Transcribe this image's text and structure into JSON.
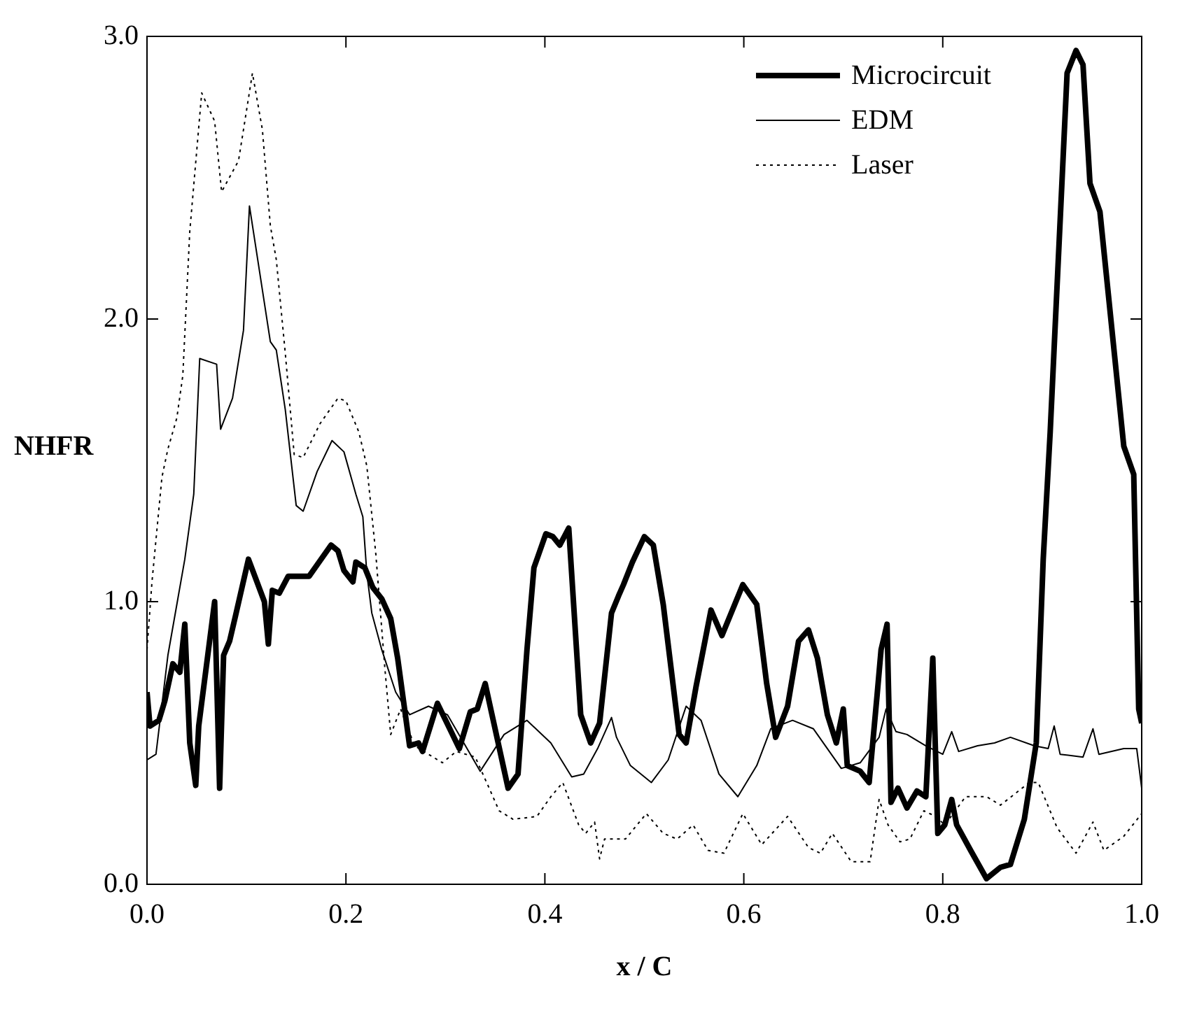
{
  "chart_data": {
    "type": "line",
    "xlabel": "x / C",
    "ylabel": "NHFR",
    "xlim": [
      0,
      1
    ],
    "ylim": [
      0,
      3
    ],
    "xticks": [
      {
        "value": 0,
        "label": "0.0"
      },
      {
        "value": 0.2,
        "label": "0.2"
      },
      {
        "value": 0.4,
        "label": "0.4"
      },
      {
        "value": 0.6,
        "label": "0.6"
      },
      {
        "value": 0.8,
        "label": "0.8"
      },
      {
        "value": 1,
        "label": "1.0"
      }
    ],
    "yticks": [
      {
        "value": 0,
        "label": "0.0"
      },
      {
        "value": 1,
        "label": "1.0"
      },
      {
        "value": 2,
        "label": "2.0"
      },
      {
        "value": 3,
        "label": "3.0"
      }
    ],
    "grid": false,
    "legend": "top right",
    "marker": "none",
    "series": [
      {
        "name": "Microcircuit",
        "color": "#000000",
        "line_style": "solid",
        "x": [
          0,
          0.003,
          0.012,
          0.018,
          0.026,
          0.033,
          0.038,
          0.043,
          0.049,
          0.052,
          0.068,
          0.073,
          0.077,
          0.083,
          0.089,
          0.102,
          0.118,
          0.122,
          0.126,
          0.133,
          0.142,
          0.163,
          0.171,
          0.185,
          0.192,
          0.198,
          0.207,
          0.21,
          0.219,
          0.227,
          0.236,
          0.245,
          0.252,
          0.264,
          0.273,
          0.277,
          0.292,
          0.314,
          0.325,
          0.332,
          0.34,
          0.363,
          0.373,
          0.382,
          0.389,
          0.401,
          0.408,
          0.415,
          0.424,
          0.436,
          0.446,
          0.455,
          0.467,
          0.474,
          0.479,
          0.488,
          0.5,
          0.509,
          0.519,
          0.535,
          0.542,
          0.552,
          0.567,
          0.578,
          0.599,
          0.613,
          0.623,
          0.632,
          0.644,
          0.655,
          0.665,
          0.674,
          0.684,
          0.693,
          0.7,
          0.704,
          0.717,
          0.726,
          0.734,
          0.738,
          0.744,
          0.748,
          0.755,
          0.764,
          0.774,
          0.783,
          0.79,
          0.795,
          0.802,
          0.809,
          0.814,
          0.828,
          0.844,
          0.858,
          0.868,
          0.882,
          0.894,
          0.901,
          0.908,
          0.925,
          0.934,
          0.941,
          0.948,
          0.958,
          0.982,
          0.992,
          0.997,
          1
        ],
        "values": [
          0.68,
          0.56,
          0.58,
          0.65,
          0.78,
          0.75,
          0.92,
          0.5,
          0.35,
          0.56,
          1.0,
          0.34,
          0.81,
          0.86,
          0.95,
          1.15,
          1.0,
          0.85,
          1.04,
          1.03,
          1.09,
          1.09,
          1.13,
          1.2,
          1.18,
          1.11,
          1.07,
          1.14,
          1.12,
          1.05,
          1.01,
          0.94,
          0.8,
          0.49,
          0.5,
          0.47,
          0.64,
          0.48,
          0.61,
          0.62,
          0.71,
          0.34,
          0.39,
          0.83,
          1.12,
          1.24,
          1.23,
          1.2,
          1.26,
          0.6,
          0.5,
          0.57,
          0.96,
          1.02,
          1.06,
          1.14,
          1.23,
          1.2,
          0.99,
          0.53,
          0.5,
          0.7,
          0.97,
          0.88,
          1.06,
          0.99,
          0.71,
          0.52,
          0.63,
          0.86,
          0.9,
          0.8,
          0.6,
          0.5,
          0.62,
          0.42,
          0.4,
          0.36,
          0.67,
          0.83,
          0.92,
          0.29,
          0.34,
          0.27,
          0.33,
          0.31,
          0.8,
          0.18,
          0.21,
          0.3,
          0.21,
          0.12,
          0.02,
          0.06,
          0.07,
          0.23,
          0.5,
          1.15,
          1.6,
          2.87,
          2.95,
          2.9,
          2.48,
          2.38,
          1.55,
          1.45,
          0.62,
          0.57
        ]
      },
      {
        "name": "EDM",
        "color": "#000000",
        "line_style": "solid",
        "x": [
          0,
          0.009,
          0.021,
          0.038,
          0.047,
          0.053,
          0.07,
          0.074,
          0.086,
          0.097,
          0.103,
          0.124,
          0.13,
          0.139,
          0.15,
          0.157,
          0.171,
          0.186,
          0.198,
          0.21,
          0.217,
          0.221,
          0.226,
          0.236,
          0.25,
          0.264,
          0.283,
          0.302,
          0.335,
          0.359,
          0.382,
          0.406,
          0.427,
          0.439,
          0.453,
          0.467,
          0.472,
          0.486,
          0.507,
          0.524,
          0.542,
          0.557,
          0.575,
          0.594,
          0.613,
          0.627,
          0.649,
          0.67,
          0.698,
          0.717,
          0.736,
          0.743,
          0.753,
          0.764,
          0.783,
          0.8,
          0.809,
          0.816,
          0.835,
          0.852,
          0.868,
          0.892,
          0.906,
          0.912,
          0.918,
          0.941,
          0.951,
          0.957,
          0.982,
          0.995,
          1
        ],
        "values": [
          0.44,
          0.46,
          0.81,
          1.15,
          1.38,
          1.86,
          1.84,
          1.61,
          1.72,
          1.96,
          2.4,
          1.92,
          1.89,
          1.68,
          1.34,
          1.32,
          1.46,
          1.57,
          1.53,
          1.38,
          1.3,
          1.1,
          0.96,
          0.83,
          0.68,
          0.6,
          0.63,
          0.6,
          0.4,
          0.53,
          0.58,
          0.5,
          0.38,
          0.39,
          0.48,
          0.59,
          0.52,
          0.42,
          0.36,
          0.44,
          0.63,
          0.58,
          0.39,
          0.31,
          0.42,
          0.55,
          0.58,
          0.55,
          0.41,
          0.43,
          0.52,
          0.62,
          0.54,
          0.53,
          0.49,
          0.46,
          0.54,
          0.47,
          0.49,
          0.5,
          0.52,
          0.49,
          0.48,
          0.56,
          0.46,
          0.45,
          0.55,
          0.46,
          0.48,
          0.48,
          0.34
        ]
      },
      {
        "name": "Laser",
        "color": "#000000",
        "line_style": "dotted",
        "x": [
          0,
          0.005,
          0.015,
          0.021,
          0.03,
          0.036,
          0.043,
          0.055,
          0.068,
          0.075,
          0.092,
          0.097,
          0.106,
          0.116,
          0.124,
          0.13,
          0.139,
          0.148,
          0.157,
          0.174,
          0.192,
          0.2,
          0.213,
          0.221,
          0.23,
          0.239,
          0.245,
          0.255,
          0.269,
          0.297,
          0.311,
          0.33,
          0.344,
          0.354,
          0.368,
          0.392,
          0.406,
          0.418,
          0.434,
          0.441,
          0.45,
          0.455,
          0.46,
          0.481,
          0.502,
          0.519,
          0.533,
          0.549,
          0.564,
          0.58,
          0.599,
          0.618,
          0.644,
          0.665,
          0.677,
          0.689,
          0.708,
          0.727,
          0.736,
          0.745,
          0.757,
          0.767,
          0.781,
          0.793,
          0.802,
          0.823,
          0.844,
          0.858,
          0.887,
          0.896,
          0.915,
          0.934,
          0.951,
          0.962,
          0.982,
          1
        ],
        "values": [
          0.83,
          1.07,
          1.44,
          1.54,
          1.65,
          1.8,
          2.31,
          2.8,
          2.7,
          2.45,
          2.56,
          2.67,
          2.87,
          2.67,
          2.33,
          2.21,
          1.88,
          1.52,
          1.51,
          1.63,
          1.72,
          1.71,
          1.6,
          1.48,
          1.17,
          0.77,
          0.53,
          0.62,
          0.49,
          0.43,
          0.47,
          0.45,
          0.34,
          0.26,
          0.23,
          0.24,
          0.31,
          0.36,
          0.21,
          0.18,
          0.22,
          0.09,
          0.16,
          0.16,
          0.25,
          0.18,
          0.16,
          0.21,
          0.12,
          0.11,
          0.25,
          0.14,
          0.24,
          0.13,
          0.11,
          0.18,
          0.08,
          0.08,
          0.3,
          0.21,
          0.15,
          0.16,
          0.26,
          0.24,
          0.21,
          0.31,
          0.31,
          0.28,
          0.36,
          0.36,
          0.2,
          0.11,
          0.22,
          0.12,
          0.17,
          0.25
        ]
      }
    ]
  }
}
